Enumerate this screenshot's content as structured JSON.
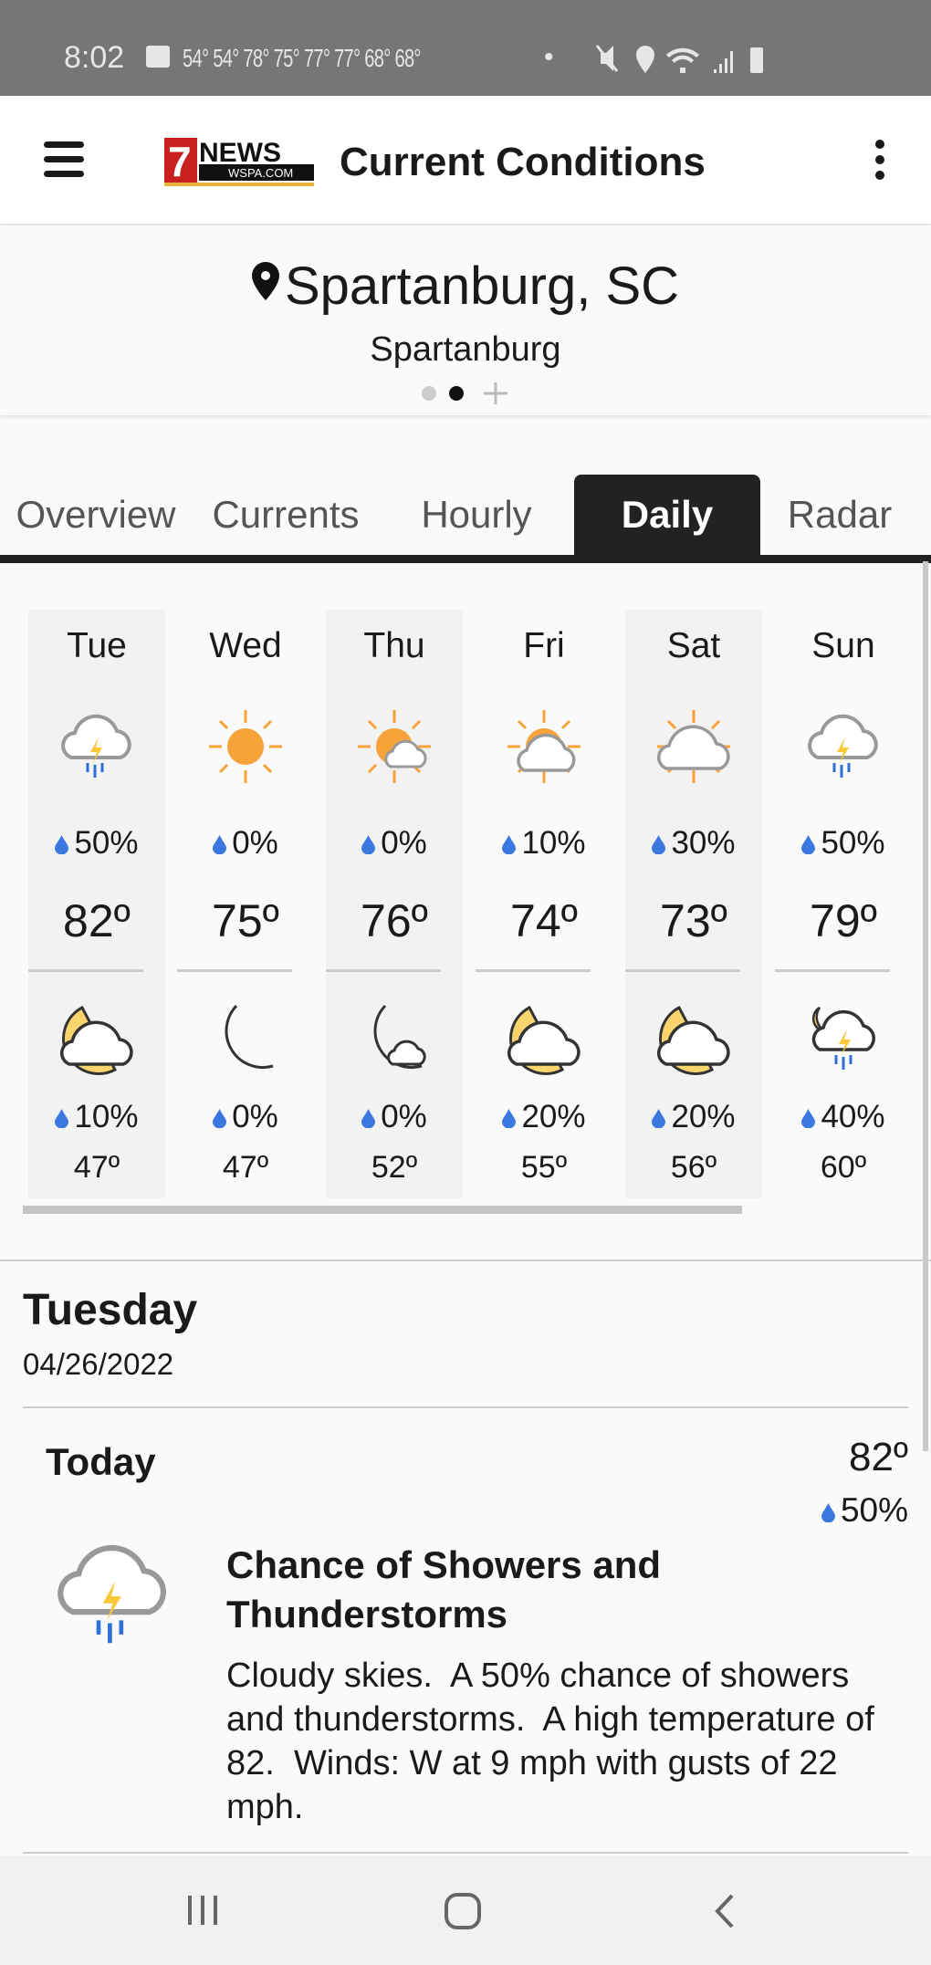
{
  "status_bar": {
    "time": "8:02",
    "notification_temps": "54° 54° 78° 75° 77° 77° 68° 68°",
    "dot": "•"
  },
  "header": {
    "title": "Current Conditions",
    "logo_text": "7NEWS WSPA.COM",
    "menu_icon": "hamburger-icon",
    "more_icon": "kebab-icon"
  },
  "location": {
    "name": "Spartanburg, SC",
    "subtitle": "Spartanburg",
    "pages": 3,
    "active_page": 2
  },
  "tabs": [
    {
      "label": "Overview"
    },
    {
      "label": "Currents"
    },
    {
      "label": "Hourly"
    },
    {
      "label": "Daily",
      "active": true
    },
    {
      "label": "Radar"
    }
  ],
  "daily": [
    {
      "day": "Tue",
      "day_icon": "thunderstorm",
      "day_precip": "50%",
      "high": "82º",
      "night_icon": "night-mostly-cloudy",
      "night_precip": "10%",
      "low": "47º"
    },
    {
      "day": "Wed",
      "day_icon": "sunny",
      "day_precip": "0%",
      "high": "75º",
      "night_icon": "clear-night",
      "night_precip": "0%",
      "low": "47º"
    },
    {
      "day": "Thu",
      "day_icon": "partly-sunny",
      "day_precip": "0%",
      "high": "76º",
      "night_icon": "night-partly-cloudy",
      "night_precip": "0%",
      "low": "52º"
    },
    {
      "day": "Fri",
      "day_icon": "mostly-cloudy-day",
      "day_precip": "10%",
      "high": "74º",
      "night_icon": "night-mostly-cloudy",
      "night_precip": "20%",
      "low": "55º"
    },
    {
      "day": "Sat",
      "day_icon": "cloudy-day",
      "day_precip": "30%",
      "high": "73º",
      "night_icon": "night-mostly-cloudy",
      "night_precip": "20%",
      "low": "56º"
    },
    {
      "day": "Sun",
      "day_icon": "thunderstorm",
      "day_precip": "50%",
      "high": "79º",
      "night_icon": "night-thunderstorm",
      "night_precip": "40%",
      "low": "60º"
    }
  ],
  "detail": {
    "day_name": "Tuesday",
    "date": "04/26/2022",
    "period": "Today",
    "temp": "82º",
    "precip": "50%",
    "icon": "thunderstorm",
    "headline": "Chance of Showers and Thunderstorms",
    "body": "Cloudy skies.  A 50% chance of showers and thunderstorms.  A high temperature of 82.  Winds: W at 9 mph with gusts of 22 mph."
  },
  "colors": {
    "status_bar": "#767676",
    "tab_active": "#222222",
    "sun": "#f8a23a",
    "moon": "#fcd46d",
    "rain": "#2f6fd6",
    "drop": "#3a78e0",
    "cloud_outline": "#999999"
  }
}
